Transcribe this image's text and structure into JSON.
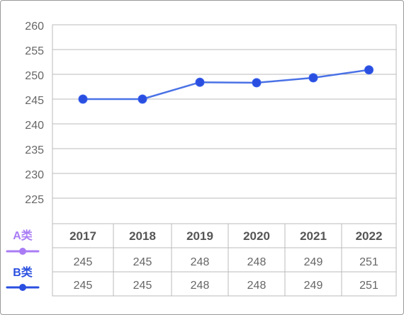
{
  "chart_data": {
    "type": "line",
    "categories": [
      "2017",
      "2018",
      "2019",
      "2020",
      "2021",
      "2022"
    ],
    "series": [
      {
        "name": "A类",
        "values": [
          245,
          245,
          248,
          248,
          249,
          251
        ],
        "color": "#a97cf5"
      },
      {
        "name": "B类",
        "values": [
          245,
          245,
          248,
          248,
          249,
          251
        ],
        "color": "#2a4fe0"
      }
    ],
    "plotted_values": [
      245.0,
      245.0,
      248.4,
      248.3,
      249.3,
      250.9
    ],
    "yticks": [
      "260",
      "255",
      "250",
      "245",
      "240",
      "235",
      "230",
      "225"
    ],
    "ylim": [
      220,
      260
    ],
    "grid": true,
    "legend": "left, in data table",
    "line_color": "#4a72e6"
  }
}
